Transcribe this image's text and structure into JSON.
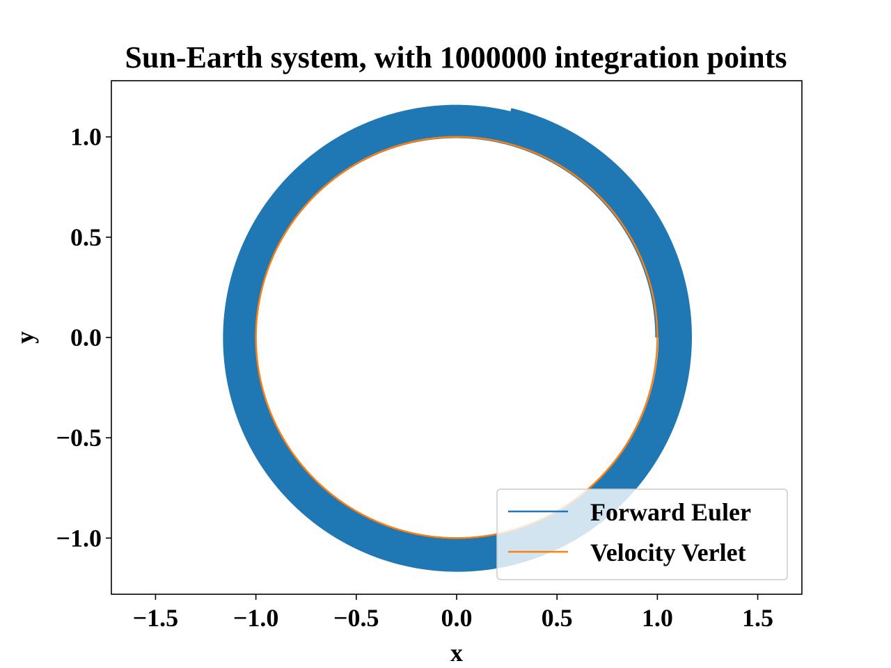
{
  "chart_data": {
    "type": "line",
    "title": "Sun-Earth system, with 1000000 integration points",
    "xlabel": "x",
    "ylabel": "y",
    "xlim": [
      -1.72,
      1.72
    ],
    "ylim": [
      -1.28,
      1.28
    ],
    "xticks": [
      -1.5,
      -1.0,
      -0.5,
      0.0,
      0.5,
      1.0,
      1.5
    ],
    "xtick_labels": [
      "−1.5",
      "−1.0",
      "−0.5",
      "0.0",
      "0.5",
      "1.0",
      "1.5"
    ],
    "yticks": [
      -1.0,
      -0.5,
      0.0,
      0.5,
      1.0
    ],
    "ytick_labels": [
      "−1.0",
      "−0.5",
      "0.0",
      "0.5",
      "1.0"
    ],
    "grid": false,
    "legend_position": "lower right",
    "series": [
      {
        "name": "Forward Euler",
        "color": "#1f77b4",
        "description_of_shape": "spiral outward",
        "r_start": 1.0,
        "r_end": 1.165,
        "end_point": [
          0.27,
          1.135
        ]
      },
      {
        "name": "Velocity Verlet",
        "color": "#ff7f0e",
        "r": 1.0
      }
    ]
  }
}
